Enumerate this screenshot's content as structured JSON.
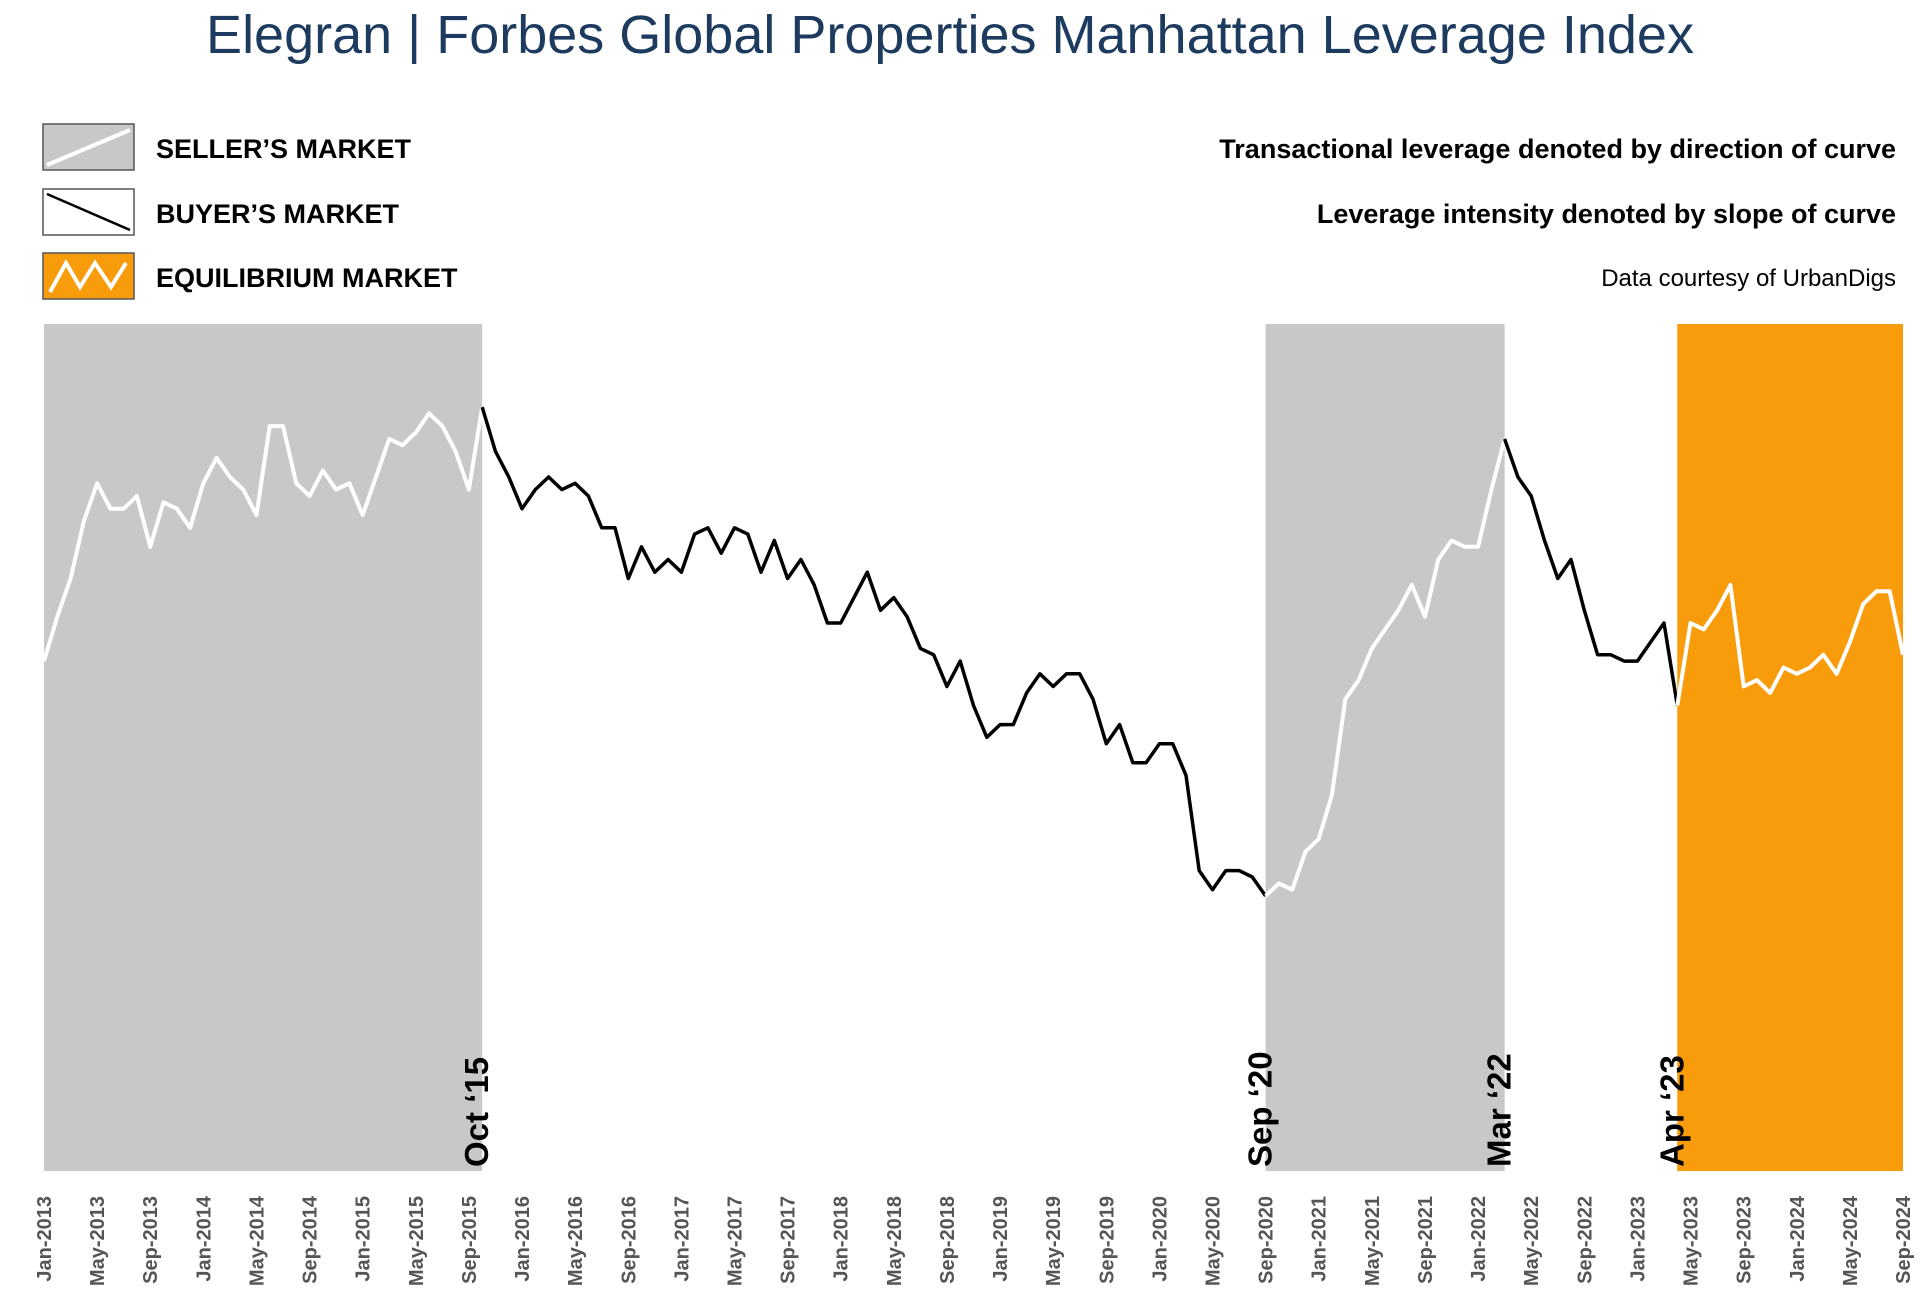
{
  "title": "Elegran | Forbes Global Properties Manhattan Leverage Index",
  "colors": {
    "sellers_shade": "#c8c8c8",
    "buyers_line": "#000000",
    "sellers_line": "#ffffff",
    "equilibrium_shade": "#f99c0b",
    "title": "#1d3a5f"
  },
  "legend": [
    {
      "label": "SELLER’S MARKET",
      "swatch": "seller"
    },
    {
      "label": "BUYER’S MARKET",
      "swatch": "buyer"
    },
    {
      "label": "EQUILIBRIUM MARKET",
      "swatch": "equilibrium"
    }
  ],
  "notes": [
    "Transactional leverage denoted by direction of curve",
    "Leverage intensity denoted by slope of curve",
    "Data courtesy of UrbanDigs"
  ],
  "chart_data": {
    "type": "line",
    "title": "Elegran | Forbes Global Properties Manhattan Leverage Index",
    "x_start": "Jan-2013",
    "x_end": "Sep-2024",
    "x_tick_labels": [
      "Jan-2013",
      "May-2013",
      "Sep-2013",
      "Jan-2014",
      "May-2014",
      "Sep-2014",
      "Jan-2015",
      "May-2015",
      "Sep-2015",
      "Jan-2016",
      "May-2016",
      "Sep-2016",
      "Jan-2017",
      "May-2017",
      "Sep-2017",
      "Jan-2018",
      "May-2018",
      "Sep-2018",
      "Jan-2019",
      "May-2019",
      "Sep-2019",
      "Jan-2020",
      "May-2020",
      "Sep-2020",
      "Jan-2021",
      "May-2021",
      "Sep-2021",
      "Jan-2022",
      "May-2022",
      "Sep-2022",
      "Jan-2023",
      "May-2023",
      "Sep-2023",
      "Jan-2024",
      "May-2024",
      "Sep-2024"
    ],
    "ylim": [
      0,
      100
    ],
    "y_axis_shown": false,
    "regions": [
      {
        "type": "seller",
        "start": "Jan-2013",
        "end": "Oct-2015",
        "label": "Oct ‘15"
      },
      {
        "type": "buyer",
        "start": "Oct-2015",
        "end": "Sep-2020",
        "label": "Sep ‘20"
      },
      {
        "type": "seller",
        "start": "Sep-2020",
        "end": "Mar-2022",
        "label": "Mar ‘22"
      },
      {
        "type": "buyer",
        "start": "Mar-2022",
        "end": "Apr-2023",
        "label": "Apr ‘23"
      },
      {
        "type": "equilibrium",
        "start": "Apr-2023",
        "end": "Sep-2024"
      }
    ],
    "series": [
      {
        "values": [
          54,
          61,
          67,
          76,
          82,
          78,
          78,
          80,
          72,
          79,
          78,
          75,
          82,
          86,
          83,
          81,
          77,
          91,
          91,
          82,
          80,
          84,
          81,
          82,
          77,
          83,
          89,
          88,
          90,
          93,
          91,
          87,
          81,
          94,
          87,
          83,
          78,
          81,
          83,
          81,
          82,
          80,
          75,
          75,
          67,
          72,
          68,
          70,
          68,
          74,
          75,
          71,
          75,
          74,
          68,
          73,
          67,
          70,
          66,
          60,
          60,
          64,
          68,
          62,
          64,
          61,
          56,
          55,
          50,
          54,
          47,
          42,
          44,
          44,
          49,
          52,
          50,
          52,
          52,
          48,
          41,
          44,
          38,
          38,
          41,
          41,
          36,
          21,
          18,
          21,
          21,
          20,
          17,
          19,
          18,
          24,
          26,
          33,
          48,
          51,
          56,
          59,
          62,
          66,
          61,
          70,
          73,
          72,
          72,
          81,
          89,
          83,
          80,
          73,
          67,
          70,
          62,
          55,
          55,
          54,
          54,
          57,
          60,
          47,
          60,
          59,
          62,
          66,
          50,
          51,
          49,
          53,
          52,
          53,
          55,
          52,
          57,
          63,
          65,
          65,
          55
        ]
      }
    ]
  }
}
